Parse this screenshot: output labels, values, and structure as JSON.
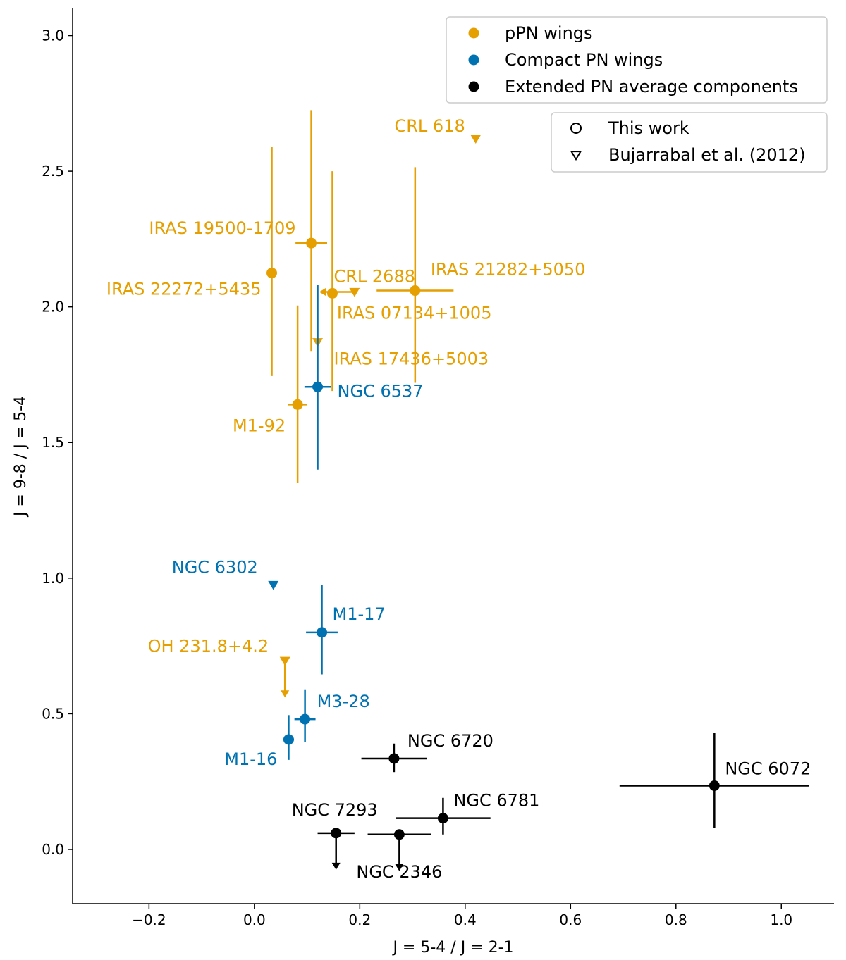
{
  "chart_data": {
    "type": "scatter",
    "xlabel": "J = 5-4 / J = 2-1",
    "ylabel": "J = 9-8 / J = 5-4",
    "xlim": [
      -0.345,
      1.1
    ],
    "ylim": [
      -0.2,
      3.1
    ],
    "xticks": [
      -0.2,
      0.0,
      0.2,
      0.4,
      0.6,
      0.8,
      1.0
    ],
    "xtick_labels": [
      "−0.2",
      "0.0",
      "0.2",
      "0.4",
      "0.6",
      "0.8",
      "1.0"
    ],
    "yticks": [
      0.0,
      0.5,
      1.0,
      1.5,
      2.0,
      2.5,
      3.0
    ],
    "ytick_labels": [
      "0.0",
      "0.5",
      "1.0",
      "1.5",
      "2.0",
      "2.5",
      "3.0"
    ],
    "grid": false,
    "colors": {
      "ppn": "#E69F00",
      "compact": "#0072B2",
      "extended": "#000000"
    },
    "legend_groups": {
      "placement": "top-right",
      "entries": [
        {
          "label": "pPN wings",
          "group": "ppn",
          "marker": "filled-circle"
        },
        {
          "label": "Compact PN wings",
          "group": "compact",
          "marker": "filled-circle"
        },
        {
          "label": "Extended PN average components",
          "group": "extended",
          "marker": "filled-circle"
        }
      ]
    },
    "legend_markers": {
      "placement": "top-right",
      "entries": [
        {
          "label": "This work",
          "marker": "open-circle"
        },
        {
          "label": "Bujarrabal et al. (2012)",
          "marker": "open-triangle-down"
        }
      ]
    },
    "points": [
      {
        "name": "CRL 618",
        "group": "ppn",
        "marker": "triangle",
        "x": 0.42,
        "y": 2.62
      },
      {
        "name": "IRAS 19500-1709",
        "group": "ppn",
        "marker": "circle",
        "x": 0.108,
        "y": 2.235,
        "xerr": 0.03,
        "yerr_low": 0.4,
        "yerr_high": 0.49
      },
      {
        "name": "IRAS 22272+5435",
        "group": "ppn",
        "marker": "circle",
        "x": 0.033,
        "y": 2.125,
        "yerr_low": 0.38,
        "yerr_high": 0.465
      },
      {
        "name": "CRL 2688",
        "group": "ppn",
        "marker": "circle",
        "x": 0.148,
        "y": 2.05,
        "yerr_low": 0.36,
        "yerr_high": 0.45
      },
      {
        "name": "IRAS 21282+5050",
        "group": "ppn",
        "marker": "circle",
        "x": 0.305,
        "y": 2.06,
        "xerr": 0.073,
        "yerr_low": 0.34,
        "yerr_high": 0.455
      },
      {
        "name": "IRAS 07134+1005",
        "group": "ppn",
        "marker": "triangle",
        "x": 0.19,
        "y": 2.055,
        "arrow": "left"
      },
      {
        "name": "IRAS 17436+5003",
        "group": "ppn",
        "marker": "triangle",
        "x": 0.12,
        "y": 1.87
      },
      {
        "name": "M1-92",
        "group": "ppn",
        "marker": "circle",
        "x": 0.082,
        "y": 1.64,
        "xerr": 0.018,
        "yerr_low": 0.29,
        "yerr_high": 0.365
      },
      {
        "name": "OH 231.8+4.2",
        "group": "ppn",
        "marker": "triangle",
        "x": 0.058,
        "y": 0.695,
        "arrow": "down"
      },
      {
        "name": "NGC 6537",
        "group": "compact",
        "marker": "circle",
        "x": 0.12,
        "y": 1.705,
        "xerr": 0.025,
        "yerr_low": 0.305,
        "yerr_high": 0.375
      },
      {
        "name": "NGC 6302",
        "group": "compact",
        "marker": "triangle",
        "x": 0.036,
        "y": 0.975
      },
      {
        "name": "M1-17",
        "group": "compact",
        "marker": "circle",
        "x": 0.128,
        "y": 0.8,
        "xerr": 0.03,
        "yerr_low": 0.155,
        "yerr_high": 0.175
      },
      {
        "name": "M3-28",
        "group": "compact",
        "marker": "circle",
        "x": 0.096,
        "y": 0.48,
        "xerr": 0.02,
        "yerr_low": 0.085,
        "yerr_high": 0.11
      },
      {
        "name": "M1-16",
        "group": "compact",
        "marker": "circle",
        "x": 0.065,
        "y": 0.405,
        "xerr": 0.01,
        "yerr_low": 0.075,
        "yerr_high": 0.09
      },
      {
        "name": "NGC 6720",
        "group": "extended",
        "marker": "circle",
        "x": 0.265,
        "y": 0.335,
        "xerr": 0.062,
        "yerr_low": 0.05,
        "yerr_high": 0.055
      },
      {
        "name": "NGC 6072",
        "group": "extended",
        "marker": "circle",
        "x": 0.873,
        "y": 0.235,
        "xerr": 0.18,
        "yerr_low": 0.155,
        "yerr_high": 0.195
      },
      {
        "name": "NGC 6781",
        "group": "extended",
        "marker": "circle",
        "x": 0.358,
        "y": 0.115,
        "xerr": 0.09,
        "yerr_low": 0.06,
        "yerr_high": 0.075
      },
      {
        "name": "NGC 7293",
        "group": "extended",
        "marker": "circle",
        "x": 0.155,
        "y": 0.06,
        "xerr": 0.035,
        "arrow": "down"
      },
      {
        "name": "NGC 2346",
        "group": "extended",
        "marker": "circle",
        "x": 0.275,
        "y": 0.055,
        "xerr": 0.06,
        "arrow": "down"
      }
    ]
  }
}
